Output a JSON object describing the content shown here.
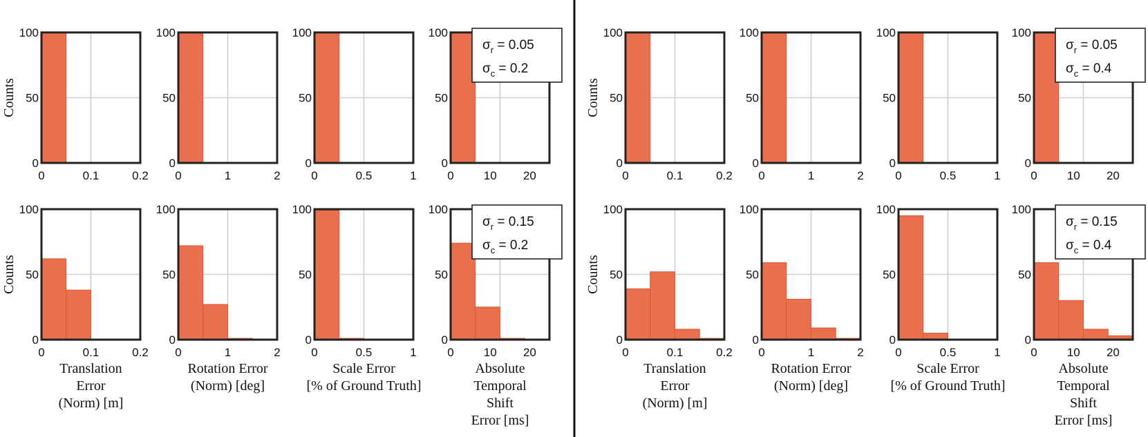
{
  "colors": {
    "bar_fill": "#E8704E",
    "bar_edge": "#E2552F",
    "divider": "#111111"
  },
  "chart_data": [
    {
      "type": "bar",
      "panel": "left",
      "row": 1,
      "ylabel": "Counts",
      "xlabel": "",
      "xlim": [
        0,
        0.2
      ],
      "ylim": [
        0,
        100
      ],
      "xticks": [
        "0",
        "0.1",
        "0.2"
      ],
      "yticks": [
        "0",
        "50",
        "100"
      ],
      "bin_edges": [
        0,
        0.05,
        0.1,
        0.15,
        0.2
      ],
      "values": [
        100,
        0,
        0,
        0
      ],
      "grid": true
    },
    {
      "type": "bar",
      "panel": "left",
      "row": 1,
      "ylabel": "",
      "xlabel": "",
      "xlim": [
        0,
        2
      ],
      "ylim": [
        0,
        100
      ],
      "xticks": [
        "0",
        "1",
        "2"
      ],
      "yticks": [
        "0",
        "50",
        "100"
      ],
      "bin_edges": [
        0,
        0.5,
        1,
        1.5,
        2
      ],
      "values": [
        100,
        0,
        0,
        0
      ],
      "grid": true
    },
    {
      "type": "bar",
      "panel": "left",
      "row": 1,
      "ylabel": "",
      "xlabel": "",
      "xlim": [
        0,
        1
      ],
      "ylim": [
        0,
        100
      ],
      "xticks": [
        "0",
        "0.5",
        "1"
      ],
      "yticks": [
        "0",
        "50",
        "100"
      ],
      "bin_edges": [
        0,
        0.25,
        0.5,
        0.75,
        1
      ],
      "values": [
        100,
        0,
        0,
        0
      ],
      "grid": true
    },
    {
      "type": "bar",
      "panel": "left",
      "row": 1,
      "ylabel": "",
      "xlabel": "",
      "xlim": [
        0,
        25
      ],
      "ylim": [
        0,
        100
      ],
      "xticks": [
        "0",
        "10",
        "20"
      ],
      "yticks": [
        "0",
        "50",
        "100"
      ],
      "bin_edges": [
        0,
        6.25,
        12.5,
        18.75,
        25
      ],
      "values": [
        100,
        0,
        0,
        0
      ],
      "grid": true,
      "legend": {
        "position": "top-right",
        "sigma_r": "0.05",
        "sigma_c": "0.2"
      }
    },
    {
      "type": "bar",
      "panel": "left",
      "row": 2,
      "ylabel": "Counts",
      "xlabel": [
        "Translation",
        "Error",
        "(Norm) [m]"
      ],
      "xlim": [
        0,
        0.2
      ],
      "ylim": [
        0,
        100
      ],
      "xticks": [
        "0",
        "0.1",
        "0.2"
      ],
      "yticks": [
        "0",
        "50",
        "100"
      ],
      "bin_edges": [
        0,
        0.05,
        0.1,
        0.15,
        0.2
      ],
      "values": [
        62,
        38,
        0,
        0
      ],
      "grid": true
    },
    {
      "type": "bar",
      "panel": "left",
      "row": 2,
      "ylabel": "",
      "xlabel": [
        "Rotation Error",
        "(Norm) [deg]"
      ],
      "xlim": [
        0,
        2
      ],
      "ylim": [
        0,
        100
      ],
      "xticks": [
        "0",
        "1",
        "2"
      ],
      "yticks": [
        "0",
        "50",
        "100"
      ],
      "bin_edges": [
        0,
        0.5,
        1,
        1.5,
        2
      ],
      "values": [
        72,
        27,
        1,
        0
      ],
      "grid": true
    },
    {
      "type": "bar",
      "panel": "left",
      "row": 2,
      "ylabel": "",
      "xlabel": [
        "Scale Error",
        "[% of Ground Truth]"
      ],
      "xlim": [
        0,
        1
      ],
      "ylim": [
        0,
        100
      ],
      "xticks": [
        "0",
        "0.5",
        "1"
      ],
      "yticks": [
        "0",
        "50",
        "100"
      ],
      "bin_edges": [
        0,
        0.25,
        0.5,
        0.75,
        1
      ],
      "values": [
        99,
        1,
        0,
        0
      ],
      "grid": true
    },
    {
      "type": "bar",
      "panel": "left",
      "row": 2,
      "ylabel": "",
      "xlabel": [
        "Absolute",
        "Temporal",
        "Shift",
        "Error [ms]"
      ],
      "xlim": [
        0,
        25
      ],
      "ylim": [
        0,
        100
      ],
      "xticks": [
        "0",
        "10",
        "20"
      ],
      "yticks": [
        "0",
        "50",
        "100"
      ],
      "bin_edges": [
        0,
        6.25,
        12.5,
        18.75,
        25
      ],
      "values": [
        74,
        25,
        1,
        0
      ],
      "grid": true,
      "legend": {
        "position": "top-right",
        "sigma_r": "0.15",
        "sigma_c": "0.2"
      }
    },
    {
      "type": "bar",
      "panel": "right",
      "row": 1,
      "ylabel": "Counts",
      "xlabel": "",
      "xlim": [
        0,
        0.2
      ],
      "ylim": [
        0,
        100
      ],
      "xticks": [
        "0",
        "0.1",
        "0.2"
      ],
      "yticks": [
        "0",
        "50",
        "100"
      ],
      "bin_edges": [
        0,
        0.05,
        0.1,
        0.15,
        0.2
      ],
      "values": [
        100,
        0,
        0,
        0
      ],
      "grid": true
    },
    {
      "type": "bar",
      "panel": "right",
      "row": 1,
      "ylabel": "",
      "xlabel": "",
      "xlim": [
        0,
        2
      ],
      "ylim": [
        0,
        100
      ],
      "xticks": [
        "0",
        "1",
        "2"
      ],
      "yticks": [
        "0",
        "50",
        "100"
      ],
      "bin_edges": [
        0,
        0.5,
        1,
        1.5,
        2
      ],
      "values": [
        100,
        0,
        0,
        0
      ],
      "grid": true
    },
    {
      "type": "bar",
      "panel": "right",
      "row": 1,
      "ylabel": "",
      "xlabel": "",
      "xlim": [
        0,
        1
      ],
      "ylim": [
        0,
        100
      ],
      "xticks": [
        "0",
        "0.5",
        "1"
      ],
      "yticks": [
        "0",
        "50",
        "100"
      ],
      "bin_edges": [
        0,
        0.25,
        0.5,
        0.75,
        1
      ],
      "values": [
        100,
        0,
        0,
        0
      ],
      "grid": true
    },
    {
      "type": "bar",
      "panel": "right",
      "row": 1,
      "ylabel": "",
      "xlabel": "",
      "xlim": [
        0,
        25
      ],
      "ylim": [
        0,
        100
      ],
      "xticks": [
        "0",
        "10",
        "20"
      ],
      "yticks": [
        "0",
        "50",
        "100"
      ],
      "bin_edges": [
        0,
        6.25,
        12.5,
        18.75,
        25
      ],
      "values": [
        100,
        0,
        0,
        0
      ],
      "grid": true,
      "legend": {
        "position": "top-right",
        "sigma_r": "0.05",
        "sigma_c": "0.4"
      }
    },
    {
      "type": "bar",
      "panel": "right",
      "row": 2,
      "ylabel": "Counts",
      "xlabel": [
        "Translation",
        "Error",
        "(Norm) [m]"
      ],
      "xlim": [
        0,
        0.2
      ],
      "ylim": [
        0,
        100
      ],
      "xticks": [
        "0",
        "0.1",
        "0.2"
      ],
      "yticks": [
        "0",
        "50",
        "100"
      ],
      "bin_edges": [
        0,
        0.05,
        0.1,
        0.15,
        0.2
      ],
      "values": [
        39,
        52,
        8,
        1
      ],
      "grid": true
    },
    {
      "type": "bar",
      "panel": "right",
      "row": 2,
      "ylabel": "",
      "xlabel": [
        "Rotation Error",
        "(Norm) [deg]"
      ],
      "xlim": [
        0,
        2
      ],
      "ylim": [
        0,
        100
      ],
      "xticks": [
        "0",
        "1",
        "2"
      ],
      "yticks": [
        "0",
        "50",
        "100"
      ],
      "bin_edges": [
        0,
        0.5,
        1,
        1.5,
        2
      ],
      "values": [
        59,
        31,
        9,
        1
      ],
      "grid": true
    },
    {
      "type": "bar",
      "panel": "right",
      "row": 2,
      "ylabel": "",
      "xlabel": [
        "Scale Error",
        "[% of Ground Truth]"
      ],
      "xlim": [
        0,
        1
      ],
      "ylim": [
        0,
        100
      ],
      "xticks": [
        "0",
        "0.5",
        "1"
      ],
      "yticks": [
        "0",
        "50",
        "100"
      ],
      "bin_edges": [
        0,
        0.25,
        0.5,
        0.75,
        1
      ],
      "values": [
        95,
        5,
        0,
        0
      ],
      "grid": true
    },
    {
      "type": "bar",
      "panel": "right",
      "row": 2,
      "ylabel": "",
      "xlabel": [
        "Absolute",
        "Temporal",
        "Shift",
        "Error [ms]"
      ],
      "xlim": [
        0,
        25
      ],
      "ylim": [
        0,
        100
      ],
      "xticks": [
        "0",
        "10",
        "20"
      ],
      "yticks": [
        "0",
        "50",
        "100"
      ],
      "bin_edges": [
        0,
        6.25,
        12.5,
        18.75,
        25
      ],
      "values": [
        59,
        30,
        8,
        3
      ],
      "grid": true,
      "legend": {
        "position": "top-right",
        "sigma_r": "0.15",
        "sigma_c": "0.4"
      }
    }
  ]
}
